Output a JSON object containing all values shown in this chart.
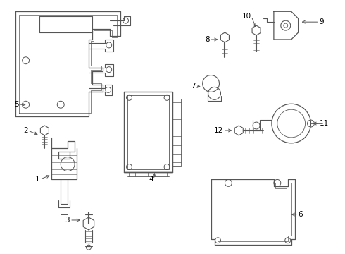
{
  "background_color": "#ffffff",
  "line_color": "#555555",
  "label_color": "#000000",
  "fig_width": 4.9,
  "fig_height": 3.6,
  "dpi": 100
}
